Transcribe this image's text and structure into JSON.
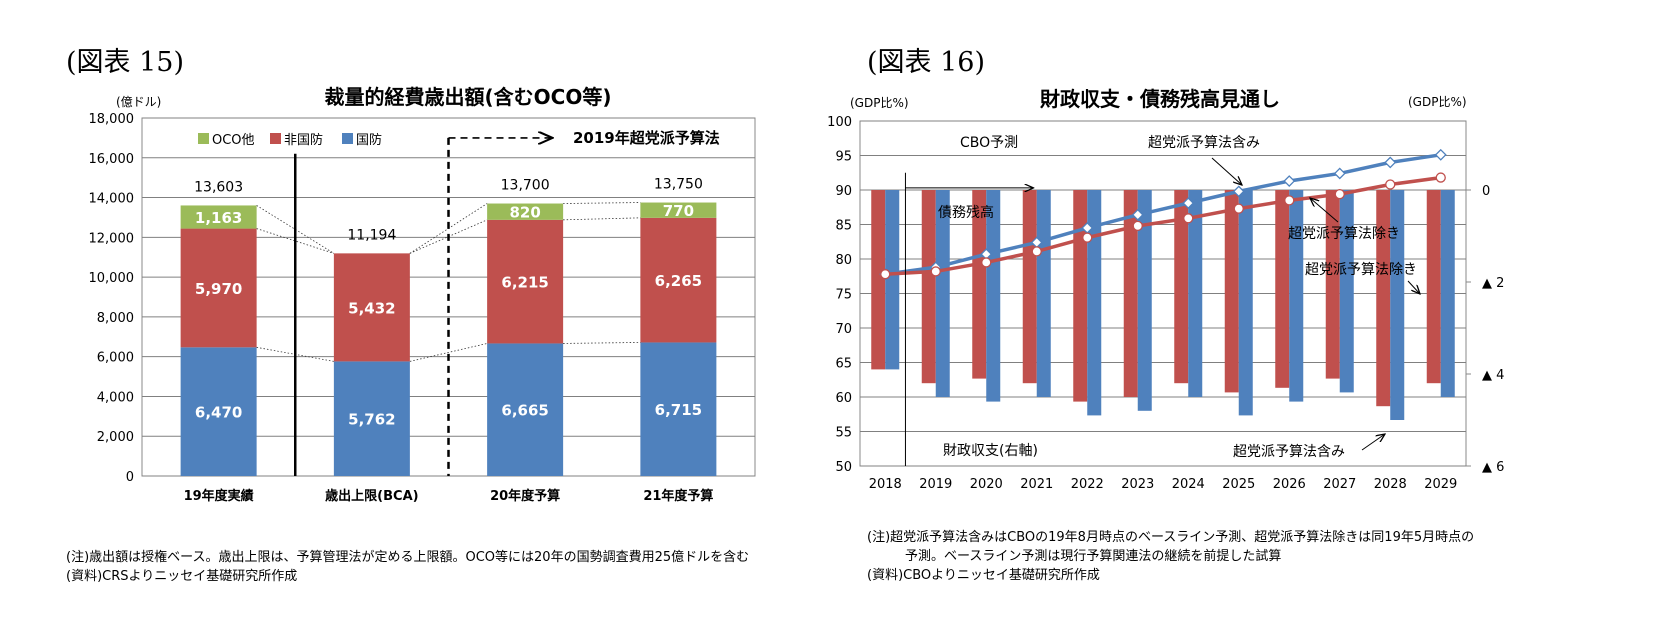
{
  "left": {
    "fig_label": "(図表 15)",
    "notes": [
      "(注)歳出額は授権ベース。歳出上限は、予算管理法が定める上限額。OCO等には20年の国勢調査費用25億ドルを含む",
      "(資料)CRSよりニッセイ基礎研究所作成"
    ]
  },
  "right": {
    "fig_label": "(図表 16)",
    "notes": [
      "(注)超党派予算法含みはCBOの19年8月時点のベースライン予測、超党派予算法除きは同19年5月時点の",
      "予測。ベースライン予測は現行予算関連法の継続を前提した試算",
      "(資料)CBOよりニッセイ基礎研究所作成"
    ]
  },
  "chart_data": [
    {
      "type": "bar",
      "stacked": true,
      "title": "裁量的経費歳出額(含むOCO等)",
      "ylabel": "(億ドル)",
      "ylim": [
        0,
        18000
      ],
      "yticks": [
        "0",
        "2,000",
        "4,000",
        "6,000",
        "8,000",
        "10,000",
        "12,000",
        "14,000",
        "16,000",
        "18,000"
      ],
      "grid": true,
      "categories": [
        "19年度実績",
        "歳出上限(BCA)",
        "20年度予算",
        "21年度予算"
      ],
      "series": [
        {
          "name": "国防",
          "color": "#4f81bd",
          "values": [
            6470,
            5762,
            6665,
            6715
          ],
          "labels": [
            "6,470",
            "5,762",
            "6,665",
            "6,715"
          ]
        },
        {
          "name": "非国防",
          "color": "#c0504d",
          "values": [
            5970,
            5432,
            6215,
            6265
          ],
          "labels": [
            "5,970",
            "5,432",
            "6,215",
            "6,265"
          ]
        },
        {
          "name": "OCO他",
          "color": "#9bbb59",
          "values": [
            1163,
            0,
            820,
            770
          ],
          "labels": [
            "1,163",
            "",
            "820",
            "770"
          ]
        }
      ],
      "totals": [
        "13,603",
        "11,194",
        "13,700",
        "13,750"
      ],
      "legend_order": [
        "OCO他",
        "非国防",
        "国防"
      ],
      "legend_position": "top-left",
      "annotation": "2019年超党派予算法"
    },
    {
      "type": "bar+line",
      "title": "財政収支・債務残高見通し",
      "ylabel_left": "(GDP比%)",
      "ylabel_right": "(GDP比%)",
      "ylim_left": [
        50,
        100
      ],
      "yticks_left": [
        "50",
        "55",
        "60",
        "65",
        "70",
        "75",
        "80",
        "85",
        "90",
        "95",
        "100"
      ],
      "ylim_right": [
        -6,
        1.5
      ],
      "yticks_right": [
        "0",
        "▲ 2",
        "▲ 4",
        "▲ 6"
      ],
      "x": [
        "2018",
        "2019",
        "2020",
        "2021",
        "2022",
        "2023",
        "2024",
        "2025",
        "2026",
        "2027",
        "2028",
        "2029"
      ],
      "grid": true,
      "line_series": [
        {
          "name": "超党派予算法含み",
          "color": "#4f81bd",
          "values": [
            77.8,
            78.8,
            80.7,
            82.4,
            84.5,
            86.4,
            88.1,
            89.8,
            91.3,
            92.4,
            94.0,
            95.1
          ]
        },
        {
          "name": "超党派予算法除き",
          "color": "#c0504d",
          "values": [
            77.8,
            78.2,
            79.5,
            81.1,
            83.1,
            84.8,
            85.9,
            87.3,
            88.5,
            89.4,
            90.8,
            91.8
          ]
        }
      ],
      "bar_series": [
        {
          "name": "超党派予算法除き",
          "color": "#c0504d",
          "values": [
            -3.9,
            -4.2,
            -4.1,
            -4.2,
            -4.6,
            -4.5,
            -4.2,
            -4.4,
            -4.3,
            -4.1,
            -4.7,
            -4.2
          ]
        },
        {
          "name": "超党派予算法含み",
          "color": "#4f81bd",
          "values": [
            -3.9,
            -4.5,
            -4.6,
            -4.5,
            -4.9,
            -4.8,
            -4.5,
            -4.9,
            -4.6,
            -4.4,
            -5.0,
            -4.5
          ]
        }
      ],
      "annotations": [
        "CBO予測",
        "債務残高",
        "財政収支(右軸)",
        "超党派予算法含み",
        "超党派予算法除き",
        "超党派予算法除き",
        "超党派予算法含み"
      ]
    }
  ]
}
